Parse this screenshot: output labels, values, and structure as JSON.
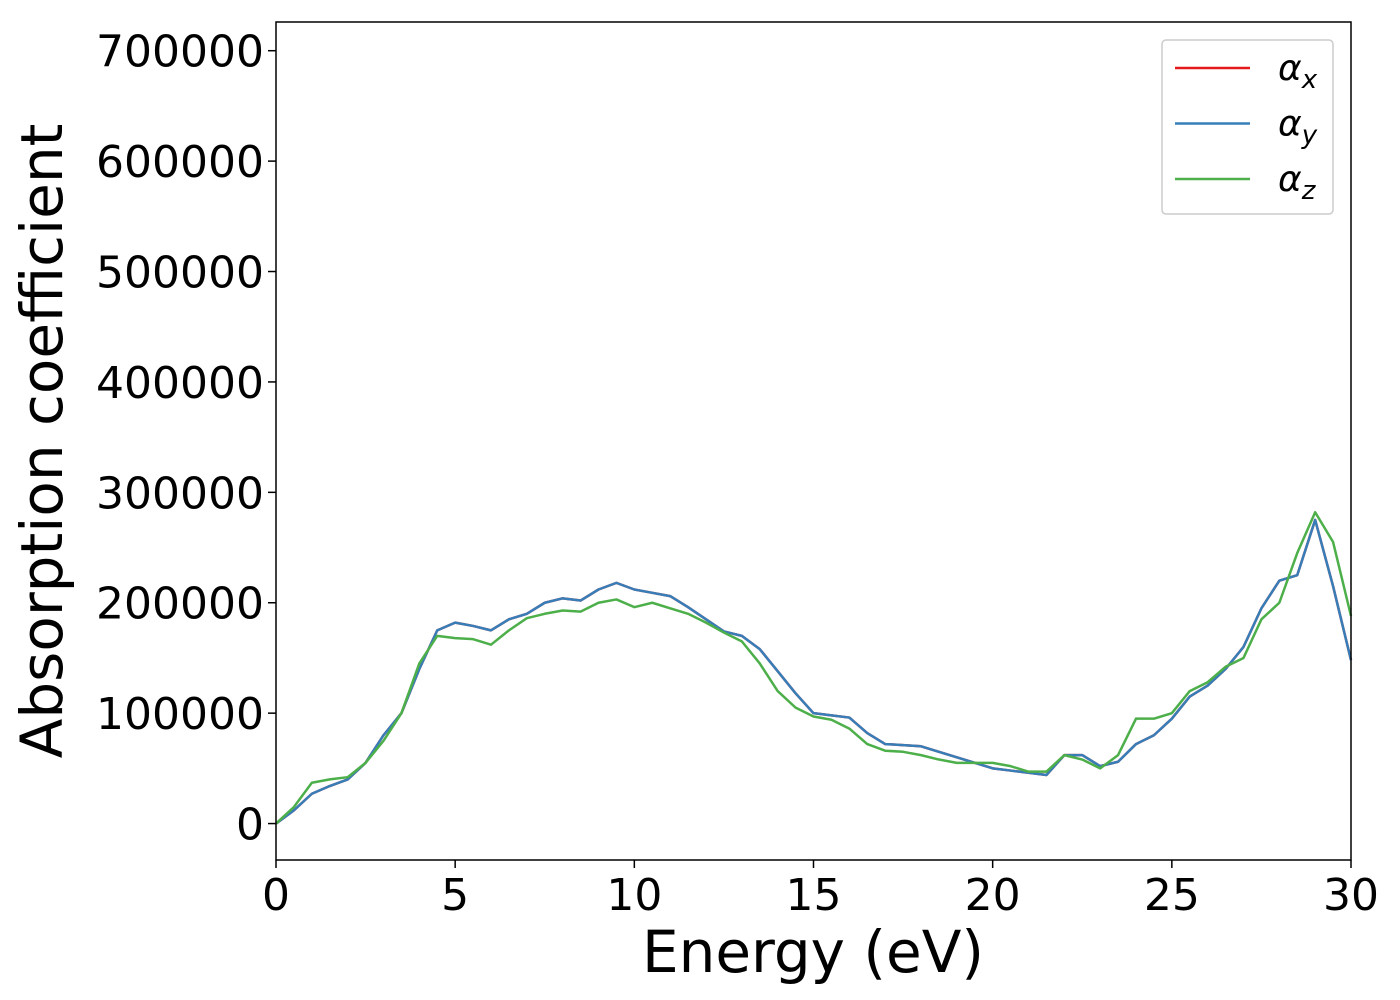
{
  "chart_data": {
    "type": "line",
    "x_label": "Energy (eV)",
    "y_label": "Absorption coefficient",
    "x": [
      0,
      0.5,
      1,
      1.5,
      2,
      2.5,
      3,
      3.5,
      4,
      4.5,
      5,
      5.5,
      6,
      6.5,
      7,
      7.5,
      8,
      8.5,
      9,
      9.5,
      10,
      10.5,
      11,
      11.5,
      12,
      12.5,
      13,
      13.5,
      14,
      14.5,
      15,
      15.5,
      16,
      16.5,
      17,
      17.5,
      18,
      18.5,
      19,
      19.5,
      20,
      20.5,
      21,
      21.5,
      22,
      22.5,
      23,
      23.5,
      24,
      24.5,
      25,
      25.5,
      26,
      26.5,
      27,
      27.5,
      28,
      28.5,
      29,
      29.5,
      30
    ],
    "series": [
      {
        "name": "αx",
        "color": "#e41a1c",
        "values": [
          0,
          12000,
          27000,
          34000,
          40000,
          55000,
          80000,
          100000,
          140000,
          175000,
          182000,
          179000,
          175000,
          185000,
          190000,
          200000,
          204000,
          202000,
          212000,
          218000,
          212000,
          209000,
          206000,
          196000,
          185000,
          174000,
          170000,
          158000,
          138000,
          118000,
          100000,
          98000,
          96000,
          82000,
          72000,
          71000,
          70000,
          65000,
          60000,
          55000,
          50000,
          48000,
          46000,
          44000,
          62000,
          62000,
          52000,
          56000,
          72000,
          80000,
          95000,
          115000,
          125000,
          140000,
          160000,
          195000,
          220000,
          225000,
          275000,
          215000,
          148000
        ]
      },
      {
        "name": "αy",
        "color": "#377eb8",
        "values": [
          0,
          12000,
          27000,
          34000,
          40000,
          55000,
          80000,
          100000,
          140000,
          175000,
          182000,
          179000,
          175000,
          185000,
          190000,
          200000,
          204000,
          202000,
          212000,
          218000,
          212000,
          209000,
          206000,
          196000,
          185000,
          174000,
          170000,
          158000,
          138000,
          118000,
          100000,
          98000,
          96000,
          82000,
          72000,
          71000,
          70000,
          65000,
          60000,
          55000,
          50000,
          48000,
          46000,
          44000,
          62000,
          62000,
          52000,
          56000,
          72000,
          80000,
          95000,
          115000,
          125000,
          140000,
          160000,
          195000,
          220000,
          225000,
          275000,
          215000,
          148000
        ]
      },
      {
        "name": "αz",
        "color": "#4daf4a",
        "values": [
          0,
          15000,
          37000,
          40000,
          42000,
          55000,
          75000,
          100000,
          145000,
          170000,
          168000,
          167000,
          162000,
          175000,
          186000,
          190000,
          193000,
          192000,
          200000,
          203000,
          196000,
          200000,
          195000,
          190000,
          182000,
          173000,
          165000,
          145000,
          120000,
          105000,
          97000,
          94000,
          86000,
          72000,
          66000,
          65000,
          62000,
          58000,
          55000,
          55000,
          55000,
          52000,
          47000,
          47000,
          62000,
          58000,
          50000,
          62000,
          95000,
          95000,
          100000,
          120000,
          128000,
          142000,
          150000,
          185000,
          200000,
          245000,
          282000,
          255000,
          188000
        ]
      }
    ],
    "xlim": [
      0,
      30
    ],
    "xticks": [
      0,
      5,
      10,
      15,
      20,
      25,
      30
    ],
    "ylim": [
      -33000,
      726000
    ],
    "yticks": [
      0,
      100000,
      200000,
      300000,
      400000,
      500000,
      600000,
      700000
    ],
    "legend": "upper right",
    "grid": false
  }
}
